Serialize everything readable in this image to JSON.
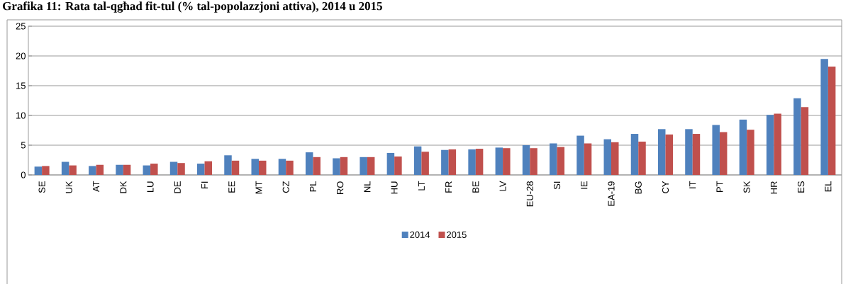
{
  "chart_data": {
    "type": "bar",
    "title": "Grafika 11: Rata tal-qgħad fit-tul (% tal-popolazzjoni attiva), 2014 u 2015",
    "categories": [
      "SE",
      "UK",
      "AT",
      "DK",
      "LU",
      "DE",
      "FI",
      "EE",
      "MT",
      "CZ",
      "PL",
      "RO",
      "NL",
      "HU",
      "LT",
      "FR",
      "BE",
      "LV",
      "EU-28",
      "SI",
      "IE",
      "EA-19",
      "BG",
      "CY",
      "IT",
      "PT",
      "SK",
      "HR",
      "ES",
      "EL"
    ],
    "series": [
      {
        "name": "2014",
        "color": "#4f81bd",
        "values": [
          1.4,
          2.2,
          1.5,
          1.7,
          1.6,
          2.2,
          1.9,
          3.3,
          2.7,
          2.7,
          3.8,
          2.8,
          3.0,
          3.7,
          4.8,
          4.2,
          4.3,
          4.6,
          5.0,
          5.3,
          6.6,
          6.0,
          6.9,
          7.7,
          7.7,
          8.4,
          9.3,
          10.1,
          12.9,
          19.5
        ]
      },
      {
        "name": "2015",
        "color": "#c0504d",
        "values": [
          1.5,
          1.6,
          1.7,
          1.7,
          1.9,
          2.0,
          2.3,
          2.4,
          2.4,
          2.4,
          3.0,
          3.0,
          3.0,
          3.1,
          3.9,
          4.3,
          4.4,
          4.5,
          4.5,
          4.7,
          5.3,
          5.5,
          5.6,
          6.8,
          6.9,
          7.2,
          7.6,
          10.3,
          11.4,
          18.2
        ]
      }
    ],
    "ylim": [
      0,
      25
    ],
    "yticks": [
      0,
      5,
      10,
      15,
      20,
      25
    ],
    "grid": "y",
    "legend": "bottom"
  }
}
